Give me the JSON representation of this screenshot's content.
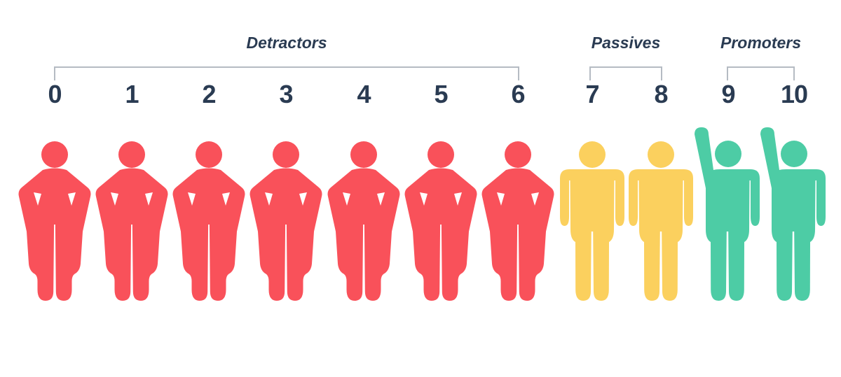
{
  "infographic": {
    "description": "NPS 0-10 scale pictograph",
    "scale_min": "0",
    "scale_max": "10",
    "text_color": "#2A3B52",
    "bracket_color": "#B5BBC3",
    "background_color": "#FFFFFF",
    "groups": [
      {
        "id": "detractors",
        "label": "Detractors",
        "pose": "hands-on-hips",
        "color": "#F9515A",
        "scores": [
          "0",
          "1",
          "2",
          "3",
          "4",
          "5",
          "6"
        ],
        "figure_count": 7
      },
      {
        "id": "passives",
        "label": "Passives",
        "pose": "arms-down",
        "color": "#FBD05E",
        "scores": [
          "7",
          "8"
        ],
        "figure_count": 2
      },
      {
        "id": "promoters",
        "label": "Promoters",
        "pose": "one-arm-raised",
        "color": "#4DCCA5",
        "scores": [
          "9",
          "10"
        ],
        "figure_count": 2
      }
    ]
  }
}
